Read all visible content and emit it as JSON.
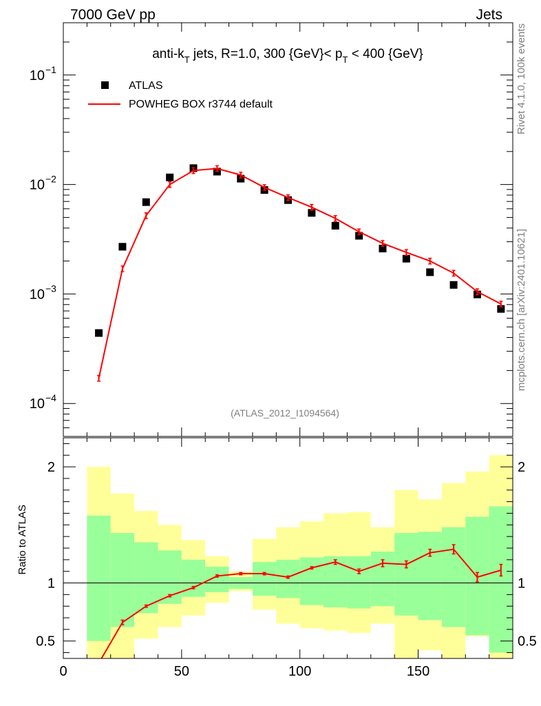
{
  "header": {
    "left": "7000 GeV pp",
    "right": "Jets"
  },
  "side": {
    "rivet": "Rivet 4.1.0,  100k events",
    "mcplots": "mcplots.cern.ch [arXiv:2401.10621]"
  },
  "chart_data": {
    "type": "scatter",
    "title": "anti-k_T jets, R=1.0, 300 {GeV}< p_T < 400 {GeV}",
    "title_parts": {
      "a": "anti-k",
      "a_sub": "T",
      "b": " jets, R=1.0, 300 {GeV}< p",
      "b_sub": "T",
      "c": " < 400 {GeV}"
    },
    "watermark": "(ATLAS_2012_I1094564)",
    "xlim": [
      0,
      190
    ],
    "x_ticks": [
      0,
      50,
      100,
      150
    ],
    "x_tick_labels": [
      "0",
      "50",
      "100",
      "150"
    ],
    "main": {
      "yscale": "log",
      "ylim": [
        5e-05,
        0.3
      ],
      "y_ticks": [
        0.0001,
        0.001,
        0.01,
        0.1
      ],
      "y_tick_labels": [
        {
          "base": "10",
          "exp": "−4"
        },
        {
          "base": "10",
          "exp": "−3"
        },
        {
          "base": "10",
          "exp": "−2"
        },
        {
          "base": "10",
          "exp": "−1"
        }
      ]
    },
    "ratio": {
      "ylabel": "Ratio to ATLAS",
      "ylim": [
        0.35,
        2.25
      ],
      "y_ticks": [
        0.5,
        1,
        2
      ],
      "y_tick_labels": [
        "0.5",
        "1",
        "2"
      ],
      "reference_line": 1
    },
    "legend": {
      "position": "top-left",
      "entries": [
        {
          "label": "ATLAS",
          "marker": "square",
          "color": "#000000"
        },
        {
          "label": "POWHEG BOX r3744 default",
          "marker": "line",
          "color": "#ff0000"
        }
      ]
    },
    "series": [
      {
        "name": "ATLAS",
        "x": [
          15,
          25,
          35,
          45,
          55,
          65,
          75,
          85,
          95,
          105,
          115,
          125,
          135,
          145,
          155,
          165,
          175,
          185
        ],
        "y": [
          0.00044,
          0.0027,
          0.0069,
          0.0116,
          0.0141,
          0.0131,
          0.0113,
          0.0089,
          0.0072,
          0.0055,
          0.0042,
          0.0034,
          0.0026,
          0.0021,
          0.00158,
          0.00121,
          0.00099,
          0.00073
        ]
      },
      {
        "name": "POWHEG BOX r3744 default",
        "x": [
          15,
          25,
          35,
          45,
          55,
          65,
          75,
          85,
          95,
          105,
          115,
          125,
          135,
          145,
          155,
          165,
          175,
          185
        ],
        "y": [
          0.00017,
          0.0017,
          0.0052,
          0.01,
          0.0134,
          0.014,
          0.0122,
          0.0094,
          0.0076,
          0.0062,
          0.0049,
          0.0037,
          0.0029,
          0.0024,
          0.002,
          0.00155,
          0.00105,
          0.00081
        ],
        "ratio": [
          0.31,
          0.66,
          0.8,
          0.89,
          0.96,
          1.06,
          1.08,
          1.08,
          1.05,
          1.13,
          1.18,
          1.1,
          1.17,
          1.16,
          1.26,
          1.29,
          1.05,
          1.11
        ],
        "ratio_err": [
          0.02,
          0.02,
          0.01,
          0.01,
          0.01,
          0.01,
          0.01,
          0.01,
          0.01,
          0.01,
          0.02,
          0.02,
          0.03,
          0.03,
          0.03,
          0.04,
          0.04,
          0.05
        ]
      }
    ],
    "uncertainty_bands": {
      "bins": [
        [
          10,
          20
        ],
        [
          20,
          30
        ],
        [
          30,
          40
        ],
        [
          40,
          50
        ],
        [
          50,
          60
        ],
        [
          60,
          70
        ],
        [
          70,
          80
        ],
        [
          80,
          90
        ],
        [
          90,
          100
        ],
        [
          100,
          110
        ],
        [
          110,
          120
        ],
        [
          120,
          130
        ],
        [
          130,
          140
        ],
        [
          140,
          150
        ],
        [
          150,
          160
        ],
        [
          160,
          170
        ],
        [
          170,
          180
        ],
        [
          180,
          190
        ]
      ],
      "stat_lo": [
        0.5,
        0.62,
        0.74,
        0.82,
        0.88,
        0.92,
        0.95,
        0.89,
        0.87,
        0.81,
        0.79,
        0.78,
        0.8,
        0.72,
        0.68,
        0.62,
        0.55,
        0.4
      ],
      "stat_hi": [
        1.58,
        1.43,
        1.35,
        1.28,
        1.2,
        1.14,
        1.05,
        1.18,
        1.2,
        1.22,
        1.23,
        1.23,
        1.27,
        1.43,
        1.44,
        1.48,
        1.57,
        1.66
      ],
      "total_lo": [
        0.25,
        0.32,
        0.52,
        0.62,
        0.72,
        0.83,
        0.93,
        0.77,
        0.65,
        0.61,
        0.59,
        0.57,
        0.65,
        0.3,
        0.42,
        0.18,
        0.54,
        0.13
      ],
      "total_hi": [
        2.0,
        1.77,
        1.62,
        1.5,
        1.37,
        1.23,
        1.1,
        1.38,
        1.48,
        1.53,
        1.6,
        1.61,
        1.48,
        1.8,
        1.72,
        1.86,
        1.96,
        2.1
      ]
    }
  }
}
